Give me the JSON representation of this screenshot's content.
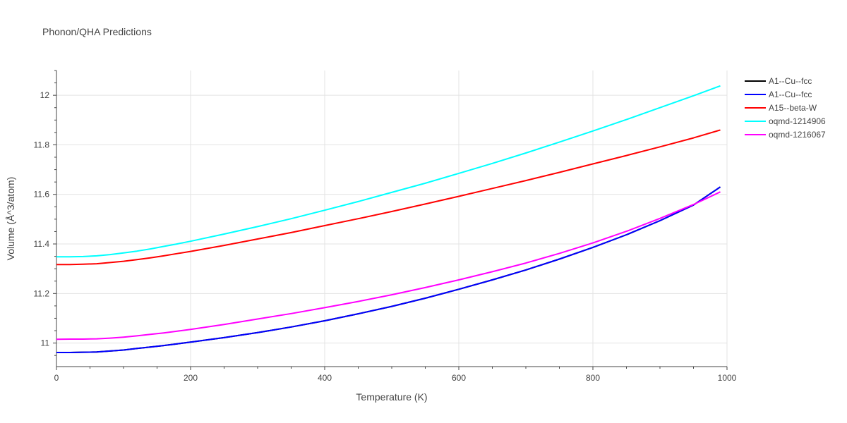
{
  "chart_data": {
    "type": "line",
    "title": "Phonon/QHA Predictions",
    "xlabel": "Temperature (K)",
    "ylabel": "Volume (Å^3/atom)",
    "xlim": [
      0,
      1000
    ],
    "ylim": [
      10.905,
      12.1
    ],
    "x_ticks": [
      0,
      200,
      400,
      600,
      800,
      1000
    ],
    "x_tick_labels": [
      "0",
      "200",
      "400",
      "600",
      "800",
      "1000"
    ],
    "y_ticks": [
      11.0,
      11.2,
      11.4,
      11.6,
      11.8,
      12.0
    ],
    "y_tick_labels": [
      "11",
      "11.2",
      "11.4",
      "11.6",
      "11.8",
      "12"
    ],
    "grid": true,
    "legend_position": "top-right",
    "series": [
      {
        "name": "A1--Cu--fcc",
        "color": "#000000",
        "x": [
          0,
          20,
          40,
          60,
          80,
          100,
          120,
          140,
          160,
          180,
          200,
          250,
          300,
          350,
          400,
          450,
          500,
          550,
          600,
          650,
          700,
          750,
          800,
          850,
          900,
          950,
          990
        ],
        "y": [
          10.962,
          10.962,
          10.963,
          10.964,
          10.968,
          10.972,
          10.978,
          10.984,
          10.99,
          10.997,
          11.004,
          11.022,
          11.042,
          11.065,
          11.09,
          11.118,
          11.148,
          11.181,
          11.217,
          11.255,
          11.295,
          11.339,
          11.386,
          11.437,
          11.494,
          11.557,
          11.63
        ]
      },
      {
        "name": "A1--Cu--fcc",
        "color": "#0000ff",
        "x": [
          0,
          20,
          40,
          60,
          80,
          100,
          120,
          140,
          160,
          180,
          200,
          250,
          300,
          350,
          400,
          450,
          500,
          550,
          600,
          650,
          700,
          750,
          800,
          850,
          900,
          950,
          990
        ],
        "y": [
          10.962,
          10.962,
          10.963,
          10.964,
          10.968,
          10.972,
          10.978,
          10.984,
          10.99,
          10.997,
          11.004,
          11.022,
          11.042,
          11.065,
          11.09,
          11.118,
          11.148,
          11.181,
          11.217,
          11.255,
          11.295,
          11.339,
          11.386,
          11.437,
          11.494,
          11.557,
          11.63
        ]
      },
      {
        "name": "A15--beta-W",
        "color": "#ff0000",
        "x": [
          0,
          20,
          40,
          60,
          80,
          100,
          120,
          140,
          160,
          180,
          200,
          250,
          300,
          350,
          400,
          450,
          500,
          550,
          600,
          650,
          700,
          750,
          800,
          850,
          900,
          950,
          990
        ],
        "y": [
          11.317,
          11.317,
          11.318,
          11.32,
          11.325,
          11.33,
          11.337,
          11.344,
          11.352,
          11.361,
          11.37,
          11.394,
          11.42,
          11.446,
          11.474,
          11.502,
          11.531,
          11.561,
          11.592,
          11.624,
          11.656,
          11.689,
          11.723,
          11.757,
          11.792,
          11.828,
          11.86
        ]
      },
      {
        "name": "oqmd-1214906",
        "color": "#00ffff",
        "x": [
          0,
          20,
          40,
          60,
          80,
          100,
          120,
          140,
          160,
          180,
          200,
          250,
          300,
          350,
          400,
          450,
          500,
          550,
          600,
          650,
          700,
          750,
          800,
          850,
          900,
          950,
          990
        ],
        "y": [
          11.348,
          11.348,
          11.349,
          11.352,
          11.357,
          11.364,
          11.371,
          11.38,
          11.39,
          11.4,
          11.411,
          11.44,
          11.47,
          11.502,
          11.536,
          11.571,
          11.608,
          11.645,
          11.685,
          11.725,
          11.767,
          11.811,
          11.856,
          11.902,
          11.95,
          11.998,
          12.038
        ]
      },
      {
        "name": "oqmd-1216067",
        "color": "#ff00ff",
        "x": [
          0,
          20,
          40,
          60,
          80,
          100,
          120,
          140,
          160,
          180,
          200,
          250,
          300,
          350,
          400,
          450,
          500,
          550,
          600,
          650,
          700,
          750,
          800,
          850,
          900,
          950,
          990
        ],
        "y": [
          11.015,
          11.016,
          11.016,
          11.017,
          11.02,
          11.024,
          11.029,
          11.035,
          11.041,
          11.048,
          11.055,
          11.075,
          11.097,
          11.119,
          11.143,
          11.168,
          11.195,
          11.224,
          11.255,
          11.288,
          11.323,
          11.362,
          11.404,
          11.451,
          11.503,
          11.559,
          11.61
        ]
      }
    ]
  }
}
